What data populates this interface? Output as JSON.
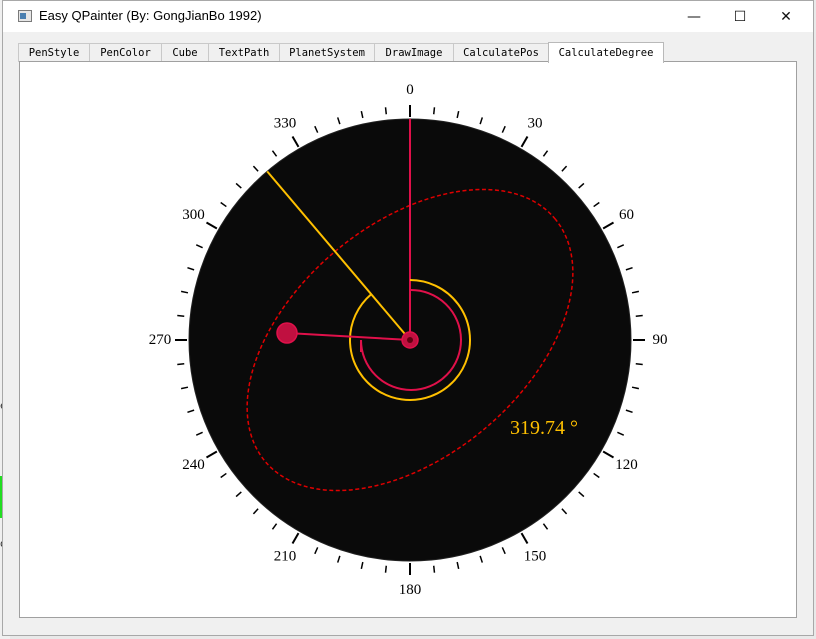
{
  "window": {
    "title": "Easy QPainter (By: GongJianBo 1992)",
    "controls": {
      "minimize": "—",
      "maximize": "☐",
      "close": "✕"
    }
  },
  "background": {
    "left_text_1": "e",
    "left_text_2": "o,"
  },
  "tabs": [
    {
      "label": "PenStyle",
      "active": false
    },
    {
      "label": "PenColor",
      "active": false
    },
    {
      "label": "Cube",
      "active": false
    },
    {
      "label": "TextPath",
      "active": false
    },
    {
      "label": "PlanetSystem",
      "active": false
    },
    {
      "label": "DrawImage",
      "active": false
    },
    {
      "label": "CalculatePos",
      "active": false
    },
    {
      "label": "CalculateDegree",
      "active": true
    }
  ],
  "dial": {
    "major_labels": [
      "0",
      "30",
      "60",
      "90",
      "120",
      "150",
      "180",
      "210",
      "240",
      "270",
      "300",
      "330"
    ],
    "tick_step_deg": 6,
    "degree_readout": "319.74 °",
    "pointer_angle_deg": 319.74,
    "colors": {
      "face": "#0a0a0a",
      "crimson": "#e0104a",
      "gold": "#ffc000",
      "ellipse": "#e00000",
      "tick": "#000000"
    }
  }
}
